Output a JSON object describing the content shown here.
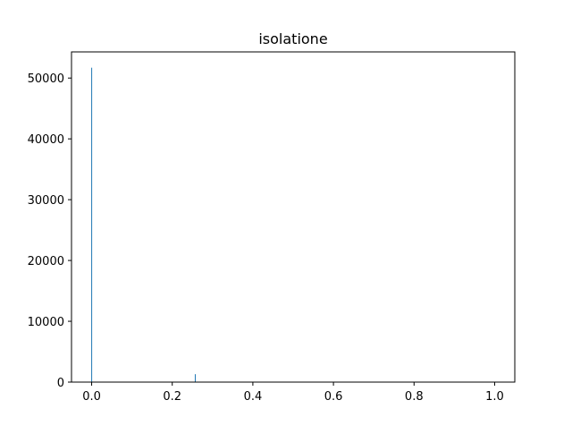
{
  "chart_data": {
    "type": "bar",
    "title": "isolatione",
    "xlabel": "",
    "ylabel": "",
    "xlim": [
      -0.05,
      1.05
    ],
    "ylim": [
      0,
      54300
    ],
    "x_ticks": [
      0.0,
      0.2,
      0.4,
      0.6,
      0.8,
      1.0
    ],
    "x_tick_labels": [
      "0.0",
      "0.2",
      "0.4",
      "0.6",
      "0.8",
      "1.0"
    ],
    "y_ticks": [
      0,
      10000,
      20000,
      30000,
      40000,
      50000
    ],
    "y_tick_labels": [
      "0",
      "10000",
      "20000",
      "30000",
      "40000",
      "50000"
    ],
    "bar_width": 0.002,
    "bars": [
      {
        "x": 0.0,
        "value": 51700
      },
      {
        "x": 0.257,
        "value": 1300
      }
    ],
    "bar_color": "#1f77b4",
    "grid": false,
    "legend": "none"
  }
}
